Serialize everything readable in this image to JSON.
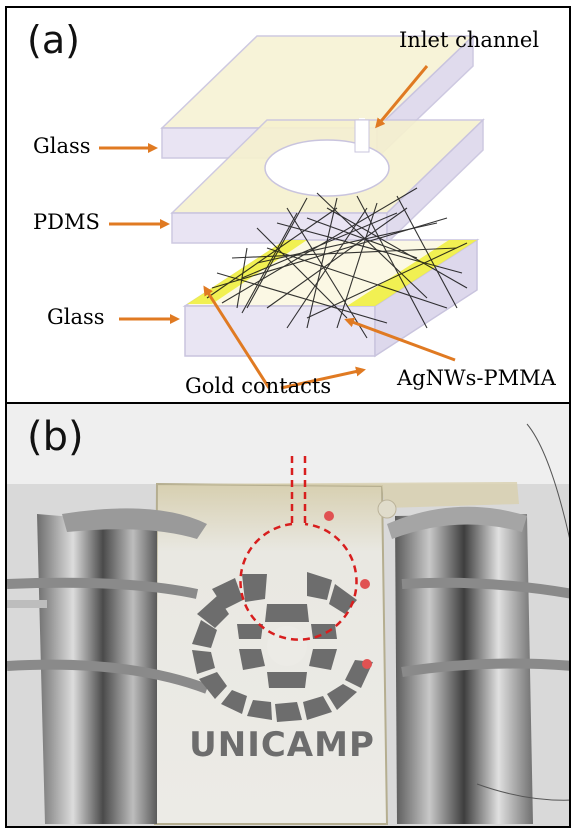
{
  "panel_a": {
    "letter": "(a)",
    "labels": {
      "glass_top": "Glass",
      "pdms": "PDMS",
      "glass_bottom": "Glass",
      "inlet_channel": "Inlet channel",
      "gold_contacts": "Gold contacts",
      "agnws_pmma": "AgNWs-PMMA"
    },
    "colors": {
      "arrow": "#e07a22",
      "gold": "#f0ef4a",
      "glass_fill": "#f6f1cf",
      "glass_edge": "#c9c4de"
    }
  },
  "panel_b": {
    "letter": "(b)",
    "logo_text": "UNICAMP",
    "colors": {
      "channel_outline": "#d81e1e",
      "contact_dot": "#e05252"
    }
  }
}
